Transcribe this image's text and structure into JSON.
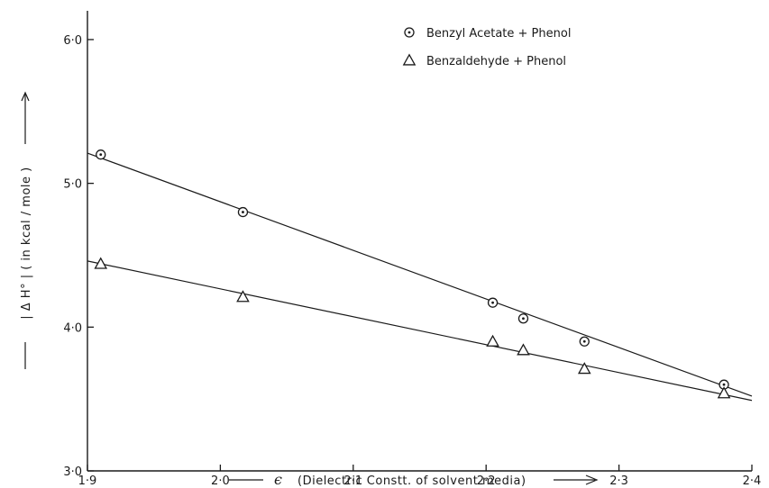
{
  "chart_data": {
    "type": "scatter",
    "xlabel_symbol": "ϵ",
    "xlabel": "(Dielectric Constt. of solvent media)",
    "ylabel": "| Δ H° | ( in kcal / mole )",
    "xlim": [
      1.9,
      2.4
    ],
    "ylim": [
      3.0,
      6.2
    ],
    "xticks": [
      1.9,
      2.0,
      2.1,
      2.2,
      2.3,
      2.4
    ],
    "xtick_labels": [
      "1·9",
      "2·0",
      "2·1",
      "2·2",
      "2·3",
      "2·4"
    ],
    "yticks": [
      3.0,
      4.0,
      5.0,
      6.0
    ],
    "ytick_labels": [
      "3·0",
      "4·0",
      "5·0",
      "6·0"
    ],
    "legend_position": "top-right",
    "series": [
      {
        "name": "Benzyl Acetate + Phenol",
        "marker": "circle-dot",
        "x": [
          1.91,
          2.017,
          2.205,
          2.228,
          2.274,
          2.379
        ],
        "y": [
          5.2,
          4.8,
          4.17,
          4.06,
          3.9,
          3.6
        ],
        "fit_line": {
          "x": [
            1.9,
            2.4
          ],
          "y": [
            5.21,
            3.52
          ]
        }
      },
      {
        "name": "Benzaldehyde + Phenol",
        "marker": "triangle",
        "x": [
          1.91,
          2.017,
          2.205,
          2.228,
          2.274,
          2.379
        ],
        "y": [
          4.44,
          4.21,
          3.9,
          3.84,
          3.71,
          3.54
        ],
        "fit_line": {
          "x": [
            1.9,
            2.4
          ],
          "y": [
            4.46,
            3.49
          ]
        }
      }
    ]
  }
}
